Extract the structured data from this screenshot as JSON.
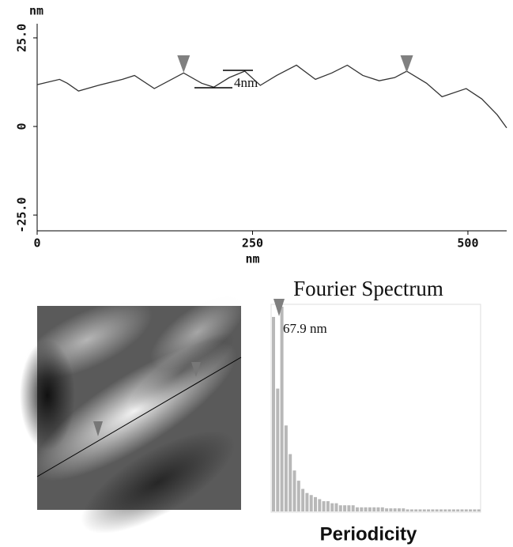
{
  "chart_data": [
    {
      "type": "line",
      "color": "#333333",
      "y_unit": "nm",
      "x_unit": "nm",
      "annotation": "4nm",
      "x": [
        0,
        26,
        35,
        48,
        71,
        99,
        113,
        136,
        170,
        191,
        205,
        223,
        241,
        259,
        278,
        301,
        323,
        342,
        360,
        378,
        397,
        415,
        429,
        452,
        470,
        498,
        516,
        534,
        545
      ],
      "values": [
        11.8,
        13.3,
        12.2,
        10,
        11.6,
        13.3,
        14.4,
        10.7,
        15.1,
        12.2,
        11.1,
        13.8,
        15.6,
        11.6,
        14.4,
        17.3,
        13.3,
        15.1,
        17.3,
        14.4,
        12.9,
        13.8,
        15.6,
        12.2,
        8.4,
        10.7,
        7.8,
        3.3,
        -0.4
      ],
      "cursors": [
        170,
        429
      ],
      "xlim": [
        0,
        545
      ],
      "ylim": [
        -29,
        29
      ],
      "xticks": [
        0,
        250,
        500
      ],
      "yticks": [
        {
          "value": 25,
          "label": "25.0"
        },
        0,
        {
          "value": -25,
          "label": "-25.0"
        }
      ]
    },
    {
      "type": "bar",
      "title": "Fourier Spectrum",
      "xlabel": "Periodicity",
      "annotation": "67.9 nm",
      "color": "#b8b8b8",
      "values": [
        95,
        60,
        100,
        42,
        28,
        20,
        15,
        11,
        9,
        8,
        7,
        6,
        5,
        5,
        4,
        4,
        3,
        3,
        3,
        3,
        2,
        2,
        2,
        2,
        2,
        2,
        2,
        1.5,
        1.5,
        1.5,
        1.5,
        1.5,
        1,
        1,
        1,
        1,
        1,
        1,
        1,
        1,
        1,
        1,
        1,
        1,
        1,
        1,
        1,
        1,
        1,
        1
      ],
      "ylim": [
        0,
        100
      ]
    }
  ]
}
